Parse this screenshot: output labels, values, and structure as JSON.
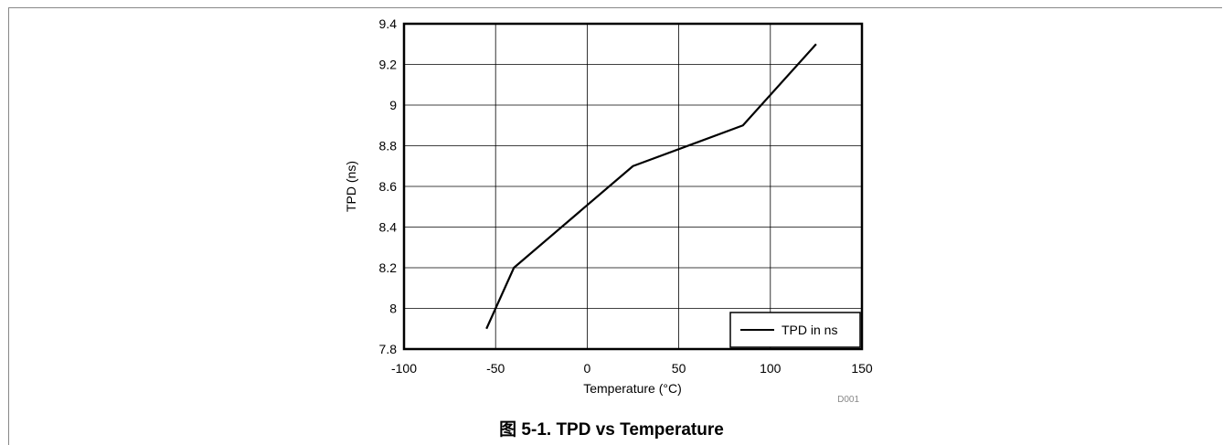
{
  "figure": {
    "caption": "图 5-1. TPD vs Temperature",
    "code": "D001"
  },
  "chart_data": {
    "type": "line",
    "xlabel": "Temperature (°C)",
    "ylabel": "TPD (ns)",
    "xlim": [
      -100,
      150
    ],
    "ylim": [
      7.8,
      9.4
    ],
    "x_ticks": [
      "-100",
      "-50",
      "0",
      "50",
      "100",
      "150"
    ],
    "y_ticks": [
      "7.8",
      "8",
      "8.2",
      "8.4",
      "8.6",
      "8.8",
      "9",
      "9.2",
      "9.4"
    ],
    "grid": true,
    "legend_position": "bottom-right",
    "series": [
      {
        "name": "TPD in ns",
        "color": "#000000",
        "x": [
          -55,
          -40,
          25,
          85,
          125
        ],
        "y": [
          7.9,
          8.2,
          8.7,
          8.9,
          9.3
        ]
      }
    ]
  }
}
